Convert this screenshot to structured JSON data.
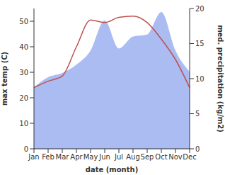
{
  "chart_data": {
    "type": "line",
    "x_label": "date (month)",
    "y_label": "max temp (C)",
    "y2_label": "med. precipitation (kg/m2)",
    "categories": [
      "Jan",
      "Feb",
      "Mar",
      "Apr",
      "May",
      "Jun",
      "Jul",
      "Aug",
      "Sep",
      "Oct",
      "Nov",
      "Dec"
    ],
    "ylim": [
      0,
      55
    ],
    "yticks": [
      0,
      10,
      20,
      30,
      40,
      50
    ],
    "y2lim": [
      0,
      20
    ],
    "y2ticks": [
      0,
      5,
      10,
      15,
      20
    ],
    "grid": false,
    "series": [
      {
        "type": "area",
        "axis": "y2",
        "color": "#aabcf2",
        "values": [
          8.8,
          10.2,
          10.8,
          12,
          14,
          18.3,
          14.3,
          16,
          16.3,
          19.5,
          14,
          11
        ]
      },
      {
        "type": "line",
        "axis": "y",
        "color": "#c0504d",
        "values": [
          24,
          26.5,
          28.5,
          40,
          50.5,
          49.5,
          51.5,
          52,
          49.5,
          43,
          35,
          24
        ]
      }
    ]
  }
}
